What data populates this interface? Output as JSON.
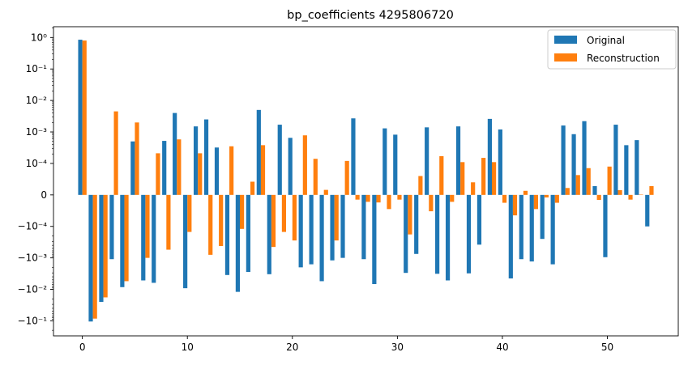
{
  "chart_data": {
    "type": "bar",
    "title": "bp_coefficients 4295806720",
    "xlabel": "",
    "ylabel": "",
    "yscale": "symlog",
    "symlog_linthresh": 0.0001,
    "xlim": [
      -2.75,
      56.75
    ],
    "ylim": [
      -0.3,
      2.2
    ],
    "x_ticks": [
      0,
      10,
      20,
      30,
      40,
      50
    ],
    "y_ticks": [
      {
        "value": 1,
        "label": "10⁰"
      },
      {
        "value": 0.1,
        "label": "10⁻¹"
      },
      {
        "value": 0.01,
        "label": "10⁻²"
      },
      {
        "value": 0.001,
        "label": "10⁻³"
      },
      {
        "value": 0.0001,
        "label": "10⁻⁴"
      },
      {
        "value": 0,
        "label": "0"
      },
      {
        "value": -0.0001,
        "label": "−10⁻⁴"
      },
      {
        "value": -0.001,
        "label": "−10⁻³"
      },
      {
        "value": -0.01,
        "label": "−10⁻²"
      },
      {
        "value": -0.1,
        "label": "−10⁻¹"
      }
    ],
    "grid": false,
    "legend_position": "top-right",
    "series": [
      {
        "name": "Original",
        "color": "#1f77b4",
        "values": [
          0.85,
          -0.105,
          -0.025,
          -0.0011,
          -0.0085,
          0.0005,
          -0.0052,
          -0.0062,
          0.00052,
          0.004,
          -0.0092,
          0.0015,
          0.0025,
          0.00032,
          -0.0035,
          -0.012,
          -0.0028,
          0.005,
          -0.0033,
          0.0017,
          0.00065,
          -0.002,
          -0.0016,
          -0.0055,
          -0.0012,
          -0.001,
          0.0027,
          -0.0011,
          -0.0068,
          0.0013,
          0.00082,
          -0.003,
          -0.00075,
          0.0014,
          -0.0032,
          -0.0052,
          0.0015,
          -0.0031,
          -0.00038,
          0.0026,
          0.0012,
          -0.0045,
          -0.0011,
          -0.0013,
          -0.00025,
          -0.0016,
          0.0016,
          0.00085,
          0.0022,
          2.8e-05,
          -0.00095,
          0.0017,
          0.00038,
          0.00055,
          -0.0001
        ]
      },
      {
        "name": "Reconstruction",
        "color": "#ff7f0e",
        "values": [
          0.8,
          -0.085,
          -0.018,
          0.0045,
          -0.0055,
          0.002,
          -0.001,
          0.00021,
          -0.00055,
          0.00058,
          -0.00015,
          0.00021,
          -0.0008,
          -0.00042,
          0.00035,
          -0.00012,
          4.2e-05,
          0.00038,
          -0.00045,
          -0.00015,
          -0.00028,
          0.00078,
          0.00014,
          1.6e-05,
          -0.00028,
          0.00012,
          -1.5e-05,
          -2.2e-05,
          -2.4e-05,
          -4.5e-05,
          -1.5e-05,
          -0.00018,
          6e-05,
          -5.2e-05,
          0.00017,
          -2.2e-05,
          0.00011,
          4e-05,
          0.00015,
          0.00011,
          -2.5e-05,
          -6.5e-05,
          1.3e-05,
          -4.5e-05,
          -8e-06,
          -2.5e-05,
          2.2e-05,
          6.3e-05,
          8.5e-05,
          -1.6e-05,
          9e-05,
          1.5e-05,
          -1.5e-05,
          9e-07,
          2.8e-05
        ]
      }
    ]
  }
}
